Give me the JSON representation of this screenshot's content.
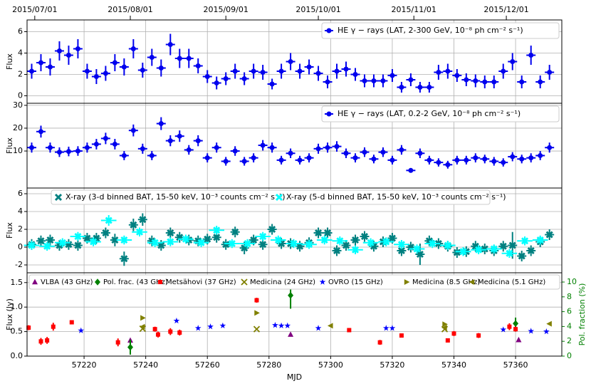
{
  "chart_data": [
    {
      "type": "errorbar",
      "ylabel": "Flux",
      "xlim": [
        57201.5,
        57375
      ],
      "ylim": [
        -0.7,
        7.1
      ],
      "yticks": [
        0,
        2,
        4,
        6
      ],
      "grid": true,
      "legend": "upper right",
      "top_xticks": [
        {
          "value": 57204,
          "label": "2015/07/01"
        },
        {
          "value": 57235,
          "label": "2015/08/01"
        },
        {
          "value": 57266,
          "label": "2015/09/01"
        },
        {
          "value": 57296,
          "label": "2015/10/01"
        },
        {
          "value": 57327,
          "label": "2015/11/01"
        },
        {
          "value": 57357,
          "label": "2015/12/01"
        }
      ],
      "series": [
        {
          "name": "HE γ − rays (LAT, 2-300 GeV, 10⁻⁸ ph cm⁻² s⁻¹)",
          "color": "#0000ee",
          "marker": "o",
          "bin_width": 3,
          "x": [
            57203,
            57206,
            57209,
            57212,
            57215,
            57218,
            57221,
            57224,
            57227,
            57230,
            57233,
            57236,
            57239,
            57242,
            57245,
            57248,
            57251,
            57254,
            57257,
            57260,
            57263,
            57266,
            57269,
            57272,
            57275,
            57278,
            57281,
            57284,
            57287,
            57290,
            57293,
            57296,
            57299,
            57302,
            57305,
            57308,
            57311,
            57314,
            57317,
            57320,
            57323,
            57326,
            57329,
            57332,
            57335,
            57338,
            57341,
            57344,
            57347,
            57350,
            57353,
            57356,
            57359,
            57362,
            57365,
            57368,
            57371
          ],
          "values": [
            2.3,
            3.1,
            2.7,
            4.2,
            3.8,
            4.4,
            2.3,
            1.8,
            2.1,
            3.1,
            2.7,
            4.4,
            2.4,
            3.6,
            2.6,
            4.8,
            3.5,
            3.5,
            2.8,
            1.8,
            1.2,
            1.6,
            2.3,
            1.6,
            2.3,
            2.2,
            1.1,
            2.3,
            3.2,
            2.3,
            2.7,
            2.1,
            1.3,
            2.3,
            2.5,
            2.0,
            1.4,
            1.4,
            1.4,
            1.9,
            0.8,
            1.5,
            0.8,
            0.8,
            2.2,
            2.3,
            1.9,
            1.5,
            1.4,
            1.3,
            1.3,
            2.3,
            3.2,
            1.3,
            3.8,
            1.3,
            2.2
          ],
          "errors": [
            0.7,
            0.8,
            0.8,
            0.9,
            0.9,
            0.9,
            0.7,
            0.7,
            0.7,
            0.8,
            0.8,
            0.9,
            0.7,
            0.8,
            0.8,
            1.0,
            0.9,
            0.9,
            0.7,
            0.6,
            0.6,
            0.6,
            0.7,
            0.6,
            0.7,
            0.7,
            0.5,
            0.7,
            0.8,
            0.7,
            0.7,
            0.7,
            0.6,
            0.7,
            0.7,
            0.6,
            0.6,
            0.6,
            0.6,
            0.6,
            0.5,
            0.6,
            0.5,
            0.5,
            0.7,
            0.7,
            0.6,
            0.6,
            0.6,
            0.6,
            0.6,
            0.7,
            0.8,
            0.6,
            0.9,
            0.6,
            0.7
          ]
        }
      ]
    },
    {
      "type": "errorbar",
      "ylabel": "Flux",
      "xlim": [
        57201.5,
        57375
      ],
      "ylim": [
        -6.2,
        30.9
      ],
      "yticks": [
        10,
        20,
        30
      ],
      "grid": true,
      "legend": "upper right",
      "series": [
        {
          "name": "HE γ − rays (LAT, 0.2-2 GeV, 10⁻⁸ ph cm⁻² s⁻¹)",
          "color": "#0000ee",
          "marker": "o",
          "bin_width": 3,
          "x": [
            57203,
            57206,
            57209,
            57212,
            57215,
            57218,
            57221,
            57224,
            57227,
            57230,
            57233,
            57236,
            57239,
            57242,
            57245,
            57248,
            57251,
            57254,
            57257,
            57260,
            57263,
            57266,
            57269,
            57272,
            57275,
            57278,
            57281,
            57284,
            57287,
            57290,
            57293,
            57296,
            57299,
            57302,
            57305,
            57308,
            57311,
            57314,
            57317,
            57320,
            57323,
            57326,
            57329,
            57332,
            57335,
            57338,
            57341,
            57344,
            57347,
            57350,
            57353,
            57356,
            57359,
            57362,
            57365,
            57368,
            57371
          ],
          "values": [
            11.5,
            18.5,
            11.5,
            9.5,
            9.8,
            10,
            11.5,
            13,
            15.5,
            13,
            8,
            19,
            11,
            8,
            22,
            14.5,
            16.5,
            10.5,
            14.5,
            7,
            11.5,
            5.5,
            10,
            5.5,
            7,
            12.5,
            11.5,
            6,
            9,
            6,
            7,
            11,
            11.5,
            12,
            9,
            7,
            9.5,
            6.5,
            9.5,
            6,
            10.5,
            1.5,
            9,
            6,
            5,
            4,
            6,
            6,
            7,
            6.5,
            5.5,
            5,
            7.5,
            6.5,
            7,
            8,
            11.5
          ],
          "errors": [
            2.2,
            2.6,
            2.2,
            2.1,
            2.1,
            2.1,
            2.2,
            2.3,
            2.5,
            2.3,
            2.0,
            2.6,
            2.2,
            2.0,
            2.8,
            2.4,
            2.5,
            2.1,
            2.4,
            2.0,
            2.2,
            1.9,
            2.1,
            1.9,
            2.0,
            2.3,
            2.2,
            1.9,
            2.1,
            1.9,
            2.0,
            2.2,
            2.2,
            2.3,
            2.1,
            2.0,
            2.1,
            1.9,
            2.1,
            1.9,
            2.1,
            0.8,
            2.1,
            1.9,
            1.8,
            1.7,
            1.9,
            1.9,
            2.0,
            1.9,
            1.9,
            1.8,
            2.0,
            1.9,
            2.0,
            2.0,
            2.2
          ]
        }
      ]
    },
    {
      "type": "errorbar",
      "ylabel": "Flux",
      "xlim": [
        57201.5,
        57375
      ],
      "ylim": [
        -2.88,
        6.64
      ],
      "yticks": [
        -2,
        0,
        2,
        4,
        6
      ],
      "grid": true,
      "legend": "upper left",
      "series": [
        {
          "name": "X-ray (3-d binned BAT, 15-50 keV, 10⁻³ counts cm⁻² s⁻¹)",
          "color": "#008080",
          "marker": "X",
          "bin_width": 3,
          "x": [
            57203,
            57206,
            57209,
            57212,
            57215,
            57218,
            57221,
            57224,
            57227,
            57230,
            57233,
            57236,
            57239,
            57242,
            57245,
            57248,
            57251,
            57254,
            57257,
            57260,
            57263,
            57266,
            57269,
            57272,
            57275,
            57278,
            57281,
            57284,
            57287,
            57290,
            57293,
            57296,
            57299,
            57302,
            57305,
            57308,
            57311,
            57314,
            57317,
            57320,
            57323,
            57326,
            57329,
            57332,
            57335,
            57338,
            57341,
            57344,
            57347,
            57350,
            57353,
            57356,
            57359,
            57362,
            57365,
            57368,
            57371
          ],
          "values": [
            0.3,
            0.7,
            0.8,
            0.2,
            0.3,
            0.2,
            1.0,
            1.0,
            1.6,
            0.8,
            -1.3,
            2.5,
            3.1,
            0.7,
            0.2,
            1.6,
            1.1,
            0.8,
            0.7,
            0.9,
            1.1,
            0.3,
            1.7,
            -0.1,
            0.8,
            0.3,
            2.0,
            0.4,
            0.4,
            0.1,
            0.5,
            1.6,
            1.6,
            -0.4,
            0.2,
            0.8,
            1.2,
            0.1,
            0.6,
            1.0,
            -0.4,
            0.0,
            -0.8,
            0.7,
            0.4,
            0.1,
            -0.6,
            -0.5,
            0.1,
            -0.2,
            -0.4,
            0.1,
            0.2,
            -1.0,
            -0.4,
            0.6,
            1.4
          ],
          "errors": [
            0.6,
            0.6,
            0.6,
            0.6,
            0.6,
            0.6,
            0.6,
            0.6,
            0.6,
            0.7,
            0.8,
            0.7,
            0.7,
            0.6,
            0.6,
            0.6,
            0.6,
            0.6,
            0.6,
            0.6,
            0.6,
            0.6,
            0.6,
            0.7,
            0.6,
            0.6,
            0.6,
            0.6,
            0.6,
            0.6,
            0.6,
            0.6,
            0.6,
            0.6,
            0.6,
            0.6,
            0.6,
            0.6,
            0.6,
            0.6,
            0.6,
            0.6,
            1.2,
            0.6,
            0.6,
            0.6,
            0.6,
            0.6,
            0.6,
            0.6,
            0.6,
            0.6,
            1.5,
            0.6,
            0.6,
            0.6,
            0.6
          ]
        },
        {
          "name": "X-ray (5-d binned BAT, 15-50 keV, 10⁻³ counts cm⁻² s⁻¹)",
          "color": "#00ffff",
          "marker": "X",
          "bin_width": 5,
          "x": [
            57203,
            57208,
            57213,
            57218,
            57223,
            57228,
            57233,
            57238,
            57243,
            57248,
            57253,
            57258,
            57263,
            57268,
            57273,
            57278,
            57283,
            57288,
            57293,
            57298,
            57303,
            57308,
            57313,
            57318,
            57323,
            57328,
            57333,
            57338,
            57343,
            57348,
            57353,
            57358,
            57363,
            57368
          ],
          "values": [
            0.2,
            0.1,
            0.5,
            1.2,
            0.6,
            3.0,
            0.8,
            1.7,
            0.5,
            0.6,
            0.9,
            0.5,
            1.9,
            0.4,
            0.4,
            1.2,
            0.8,
            0.4,
            0.3,
            0.8,
            0.7,
            -0.3,
            0.5,
            0.6,
            0.3,
            -0.2,
            0.4,
            0.2,
            -0.5,
            -0.3,
            -0.2,
            -0.7,
            0.7,
            0.8
          ],
          "errors": [
            0.5,
            0.5,
            0.5,
            0.5,
            0.5,
            0.6,
            0.5,
            0.5,
            0.5,
            0.5,
            0.5,
            0.5,
            0.5,
            0.5,
            0.5,
            0.5,
            0.5,
            0.5,
            0.5,
            0.5,
            0.5,
            0.5,
            0.5,
            0.5,
            0.5,
            0.5,
            0.5,
            0.5,
            0.5,
            0.5,
            0.5,
            0.5,
            0.5,
            0.5
          ]
        }
      ]
    },
    {
      "type": "errorbar",
      "ylabel": "Flux (Jy)",
      "y2label": "Pol. fraction (%)",
      "y2color": "#008000",
      "xlabel": "MJD",
      "xlim": [
        57201.5,
        57375
      ],
      "ylim": [
        0,
        1.7
      ],
      "yticks": [
        {
          "value": 0,
          "label": "0.0"
        },
        {
          "value": 0.5,
          "label": "0.5"
        },
        {
          "value": 1,
          "label": "1.0"
        },
        {
          "value": 1.5,
          "label": "1.5"
        }
      ],
      "y2lim": [
        0,
        11.25
      ],
      "y2ticks": [
        0,
        2,
        4,
        6,
        8,
        10
      ],
      "xticks": [
        57220,
        57240,
        57260,
        57280,
        57300,
        57320,
        57340,
        57360
      ],
      "grid": true,
      "legend": "upper center",
      "series": [
        {
          "name": "VLBA (43 GHz)",
          "color": "#800080",
          "marker": "^",
          "x": [
            57235,
            57287,
            57361
          ],
          "values": [
            0.32,
            0.44,
            0.33
          ]
        },
        {
          "name": "Pol. frac. (43 GHz)",
          "color": "#008000",
          "marker": "D",
          "axis": "y2",
          "x": [
            57235,
            57287,
            57360
          ],
          "values": [
            1.2,
            8.2,
            4.4
          ],
          "errors": [
            1.0,
            1.8,
            0.8
          ]
        },
        {
          "name": "Metsähovi (37 GHz)",
          "color": "#ff0000",
          "marker": "s",
          "x": [
            57202,
            57206,
            57208,
            57210,
            57216,
            57231,
            57243,
            57244,
            57248,
            57251,
            57276,
            57306,
            57316,
            57323,
            57338,
            57340,
            57348,
            57358,
            57360
          ],
          "values": [
            0.58,
            0.3,
            0.32,
            0.6,
            0.69,
            0.28,
            0.55,
            0.44,
            0.5,
            0.48,
            1.14,
            0.53,
            0.28,
            0.42,
            0.32,
            0.46,
            0.42,
            0.6,
            0.55
          ],
          "errors": [
            0.05,
            0.07,
            0.07,
            0.08,
            0.04,
            0.08,
            0.05,
            0.06,
            0.07,
            0.06,
            0.05,
            0.04,
            0.05,
            0.04,
            0.04,
            0.05,
            0.05,
            0.07,
            0.05
          ]
        },
        {
          "name": "Medicina (24 GHz)",
          "color": "#808000",
          "marker": "x",
          "x": [
            57239,
            57276,
            57337
          ],
          "values": [
            0.56,
            0.55,
            0.55
          ]
        },
        {
          "name": "OVRO (15 GHz)",
          "color": "#0000ff",
          "marker": "*",
          "x": [
            57219,
            57250,
            57257,
            57261,
            57265,
            57282,
            57284,
            57286,
            57296,
            57318,
            57320,
            57356,
            57365,
            57370
          ],
          "values": [
            0.52,
            0.72,
            0.57,
            0.6,
            0.62,
            0.63,
            0.62,
            0.62,
            0.57,
            0.57,
            0.57,
            0.54,
            0.51,
            0.5
          ]
        },
        {
          "name": "Medicina (8.5 GHz)",
          "color": "#808000",
          "marker": ">",
          "x": [
            57239,
            57276,
            57337
          ],
          "values": [
            0.78,
            0.88,
            0.65
          ]
        },
        {
          "name": "Medicina (5.1 GHz)",
          "color": "#808000",
          "marker": "<",
          "x": [
            57239,
            57300,
            57337,
            57371
          ],
          "values": [
            0.6,
            0.62,
            0.58,
            0.66
          ]
        }
      ]
    }
  ]
}
